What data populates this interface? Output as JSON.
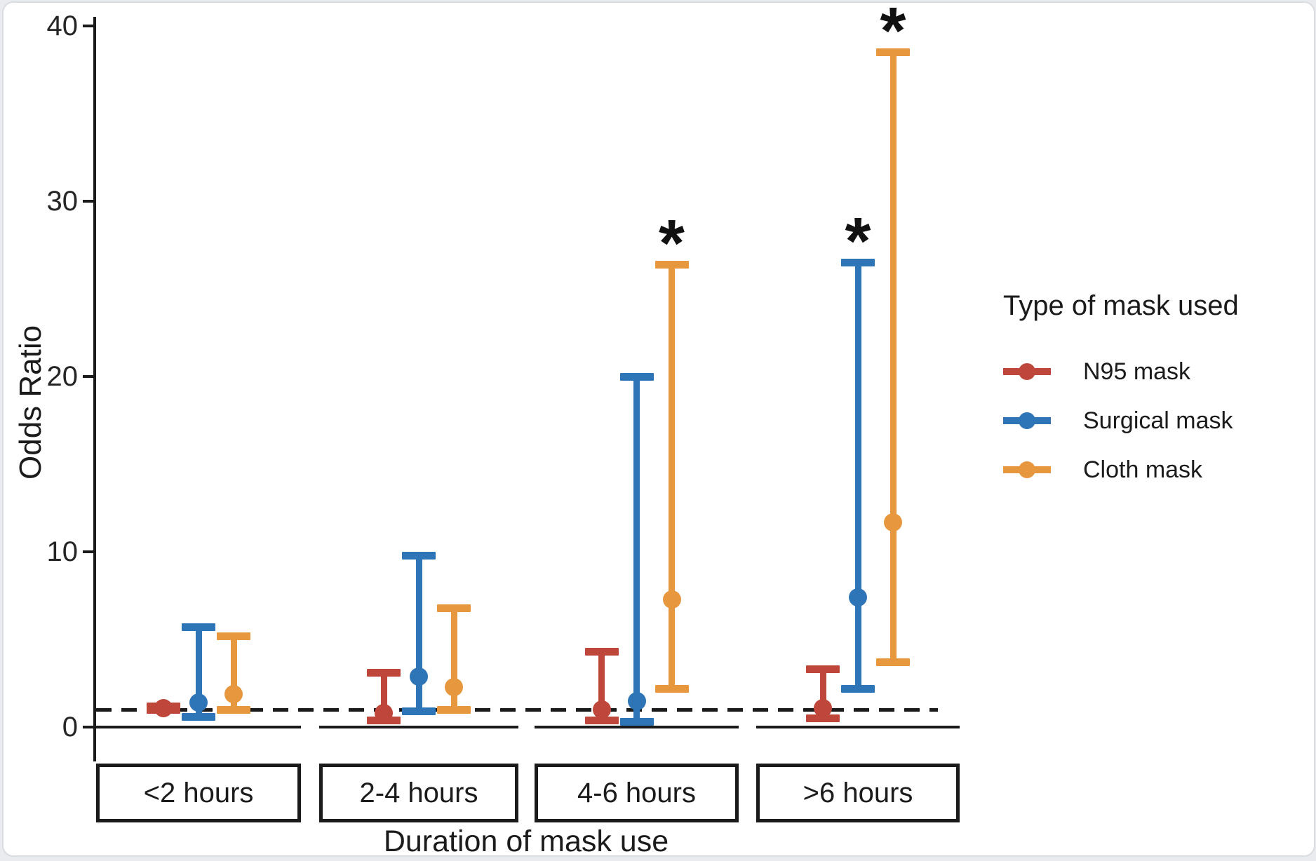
{
  "chart_data": {
    "type": "pointrange",
    "title": "",
    "xlabel": "Duration of mask use",
    "ylabel": "Odds Ratio",
    "categories": [
      "<2 hours",
      "2-4 hours",
      "4-6 hours",
      ">6 hours"
    ],
    "y_axis": {
      "ticks": [
        0,
        10,
        20,
        30,
        40
      ],
      "ylim": [
        0,
        40
      ],
      "grid": false
    },
    "ref_line": {
      "y": 1,
      "style": "dashed",
      "color": "#1b1b1b"
    },
    "legend_title": "Type of mask used",
    "legend_position": "right",
    "significance_marker": "*",
    "series": [
      {
        "name": "N95 mask",
        "color": "#be463a",
        "values": [
          {
            "category": "<2 hours",
            "est": 1.1,
            "lo": 0.9,
            "hi": 1.3,
            "significant": false
          },
          {
            "category": "2-4 hours",
            "est": 0.8,
            "lo": 0.3,
            "hi": 3.2,
            "significant": false
          },
          {
            "category": "4-6 hours",
            "est": 1.0,
            "lo": 0.3,
            "hi": 4.4,
            "significant": false
          },
          {
            "category": ">6 hours",
            "est": 1.1,
            "lo": 0.4,
            "hi": 3.4,
            "significant": false
          }
        ]
      },
      {
        "name": "Surgical mask",
        "color": "#2d75b7",
        "values": [
          {
            "category": "<2 hours",
            "est": 1.4,
            "lo": 0.5,
            "hi": 5.8,
            "significant": false
          },
          {
            "category": "2-4 hours",
            "est": 2.9,
            "lo": 0.8,
            "hi": 9.9,
            "significant": false
          },
          {
            "category": "4-6 hours",
            "est": 1.5,
            "lo": 0.2,
            "hi": 20.1,
            "significant": false
          },
          {
            "category": ">6 hours",
            "est": 7.4,
            "lo": 2.1,
            "hi": 26.6,
            "significant": true
          }
        ]
      },
      {
        "name": "Cloth mask",
        "color": "#e7973e",
        "values": [
          {
            "category": "<2 hours",
            "est": 1.9,
            "lo": 0.9,
            "hi": 5.3,
            "significant": false
          },
          {
            "category": "2-4 hours",
            "est": 2.3,
            "lo": 0.9,
            "hi": 6.9,
            "significant": false
          },
          {
            "category": "4-6 hours",
            "est": 7.3,
            "lo": 2.1,
            "hi": 26.5,
            "significant": true
          },
          {
            "category": ">6 hours",
            "est": 11.7,
            "lo": 3.6,
            "hi": 38.6,
            "significant": true
          }
        ]
      }
    ]
  }
}
